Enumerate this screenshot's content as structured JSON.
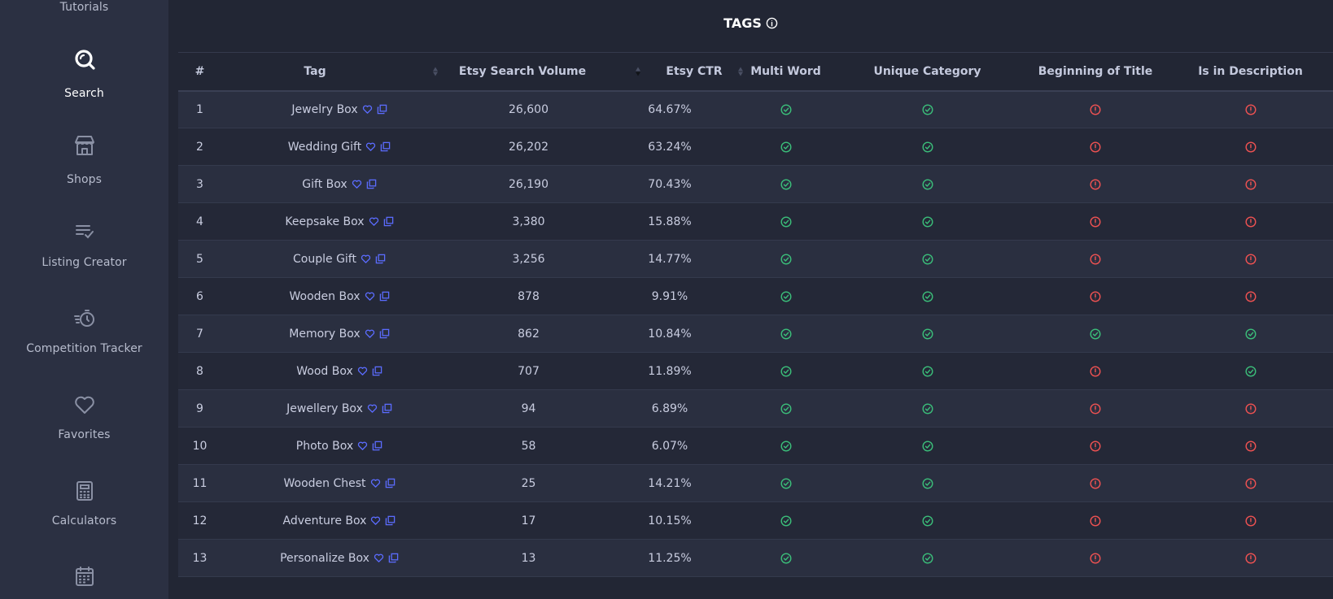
{
  "sidebar": {
    "items": [
      {
        "label": "Tutorials",
        "icon": "tutorials-icon",
        "active": false
      },
      {
        "label": "Search",
        "icon": "search-icon",
        "active": true
      },
      {
        "label": "Shops",
        "icon": "shop-icon",
        "active": false
      },
      {
        "label": "Listing Creator",
        "icon": "list-check-icon",
        "active": false
      },
      {
        "label": "Competition Tracker",
        "icon": "timer-icon",
        "active": false
      },
      {
        "label": "Favorites",
        "icon": "heart-icon",
        "active": false
      },
      {
        "label": "Calculators",
        "icon": "calculator-icon",
        "active": false
      },
      {
        "label": "",
        "icon": "calendar-icon",
        "active": false
      }
    ]
  },
  "main": {
    "title": "TAGS"
  },
  "table": {
    "headers": {
      "index": "#",
      "tag": "Tag",
      "search_volume": "Etsy Search Volume",
      "ctr": "Etsy CTR",
      "multi_word": "Multi Word",
      "unique_category": "Unique Category",
      "beginning_of_title": "Beginning of Title",
      "in_description": "Is in Description"
    },
    "rows": [
      {
        "n": "1",
        "tag": "Jewelry Box",
        "volume": "26,600",
        "ctr": "64.67%",
        "multi_word": true,
        "unique_category": true,
        "beginning_of_title": false,
        "in_description": false
      },
      {
        "n": "2",
        "tag": "Wedding Gift",
        "volume": "26,202",
        "ctr": "63.24%",
        "multi_word": true,
        "unique_category": true,
        "beginning_of_title": false,
        "in_description": false
      },
      {
        "n": "3",
        "tag": "Gift Box",
        "volume": "26,190",
        "ctr": "70.43%",
        "multi_word": true,
        "unique_category": true,
        "beginning_of_title": false,
        "in_description": false
      },
      {
        "n": "4",
        "tag": "Keepsake Box",
        "volume": "3,380",
        "ctr": "15.88%",
        "multi_word": true,
        "unique_category": true,
        "beginning_of_title": false,
        "in_description": false
      },
      {
        "n": "5",
        "tag": "Couple Gift",
        "volume": "3,256",
        "ctr": "14.77%",
        "multi_word": true,
        "unique_category": true,
        "beginning_of_title": false,
        "in_description": false
      },
      {
        "n": "6",
        "tag": "Wooden Box",
        "volume": "878",
        "ctr": "9.91%",
        "multi_word": true,
        "unique_category": true,
        "beginning_of_title": false,
        "in_description": false
      },
      {
        "n": "7",
        "tag": "Memory Box",
        "volume": "862",
        "ctr": "10.84%",
        "multi_word": true,
        "unique_category": true,
        "beginning_of_title": true,
        "in_description": true
      },
      {
        "n": "8",
        "tag": "Wood Box",
        "volume": "707",
        "ctr": "11.89%",
        "multi_word": true,
        "unique_category": true,
        "beginning_of_title": false,
        "in_description": true
      },
      {
        "n": "9",
        "tag": "Jewellery Box",
        "volume": "94",
        "ctr": "6.89%",
        "multi_word": true,
        "unique_category": true,
        "beginning_of_title": false,
        "in_description": false
      },
      {
        "n": "10",
        "tag": "Photo Box",
        "volume": "58",
        "ctr": "6.07%",
        "multi_word": true,
        "unique_category": true,
        "beginning_of_title": false,
        "in_description": false
      },
      {
        "n": "11",
        "tag": "Wooden Chest",
        "volume": "25",
        "ctr": "14.21%",
        "multi_word": true,
        "unique_category": true,
        "beginning_of_title": false,
        "in_description": false
      },
      {
        "n": "12",
        "tag": "Adventure Box",
        "volume": "17",
        "ctr": "10.15%",
        "multi_word": true,
        "unique_category": true,
        "beginning_of_title": false,
        "in_description": false
      },
      {
        "n": "13",
        "tag": "Personalize Box",
        "volume": "13",
        "ctr": "11.25%",
        "multi_word": true,
        "unique_category": true,
        "beginning_of_title": false,
        "in_description": false
      }
    ]
  },
  "colors": {
    "check": "#3bbf7a",
    "alert": "#f05252",
    "tag_icon": "#5b6cff"
  }
}
